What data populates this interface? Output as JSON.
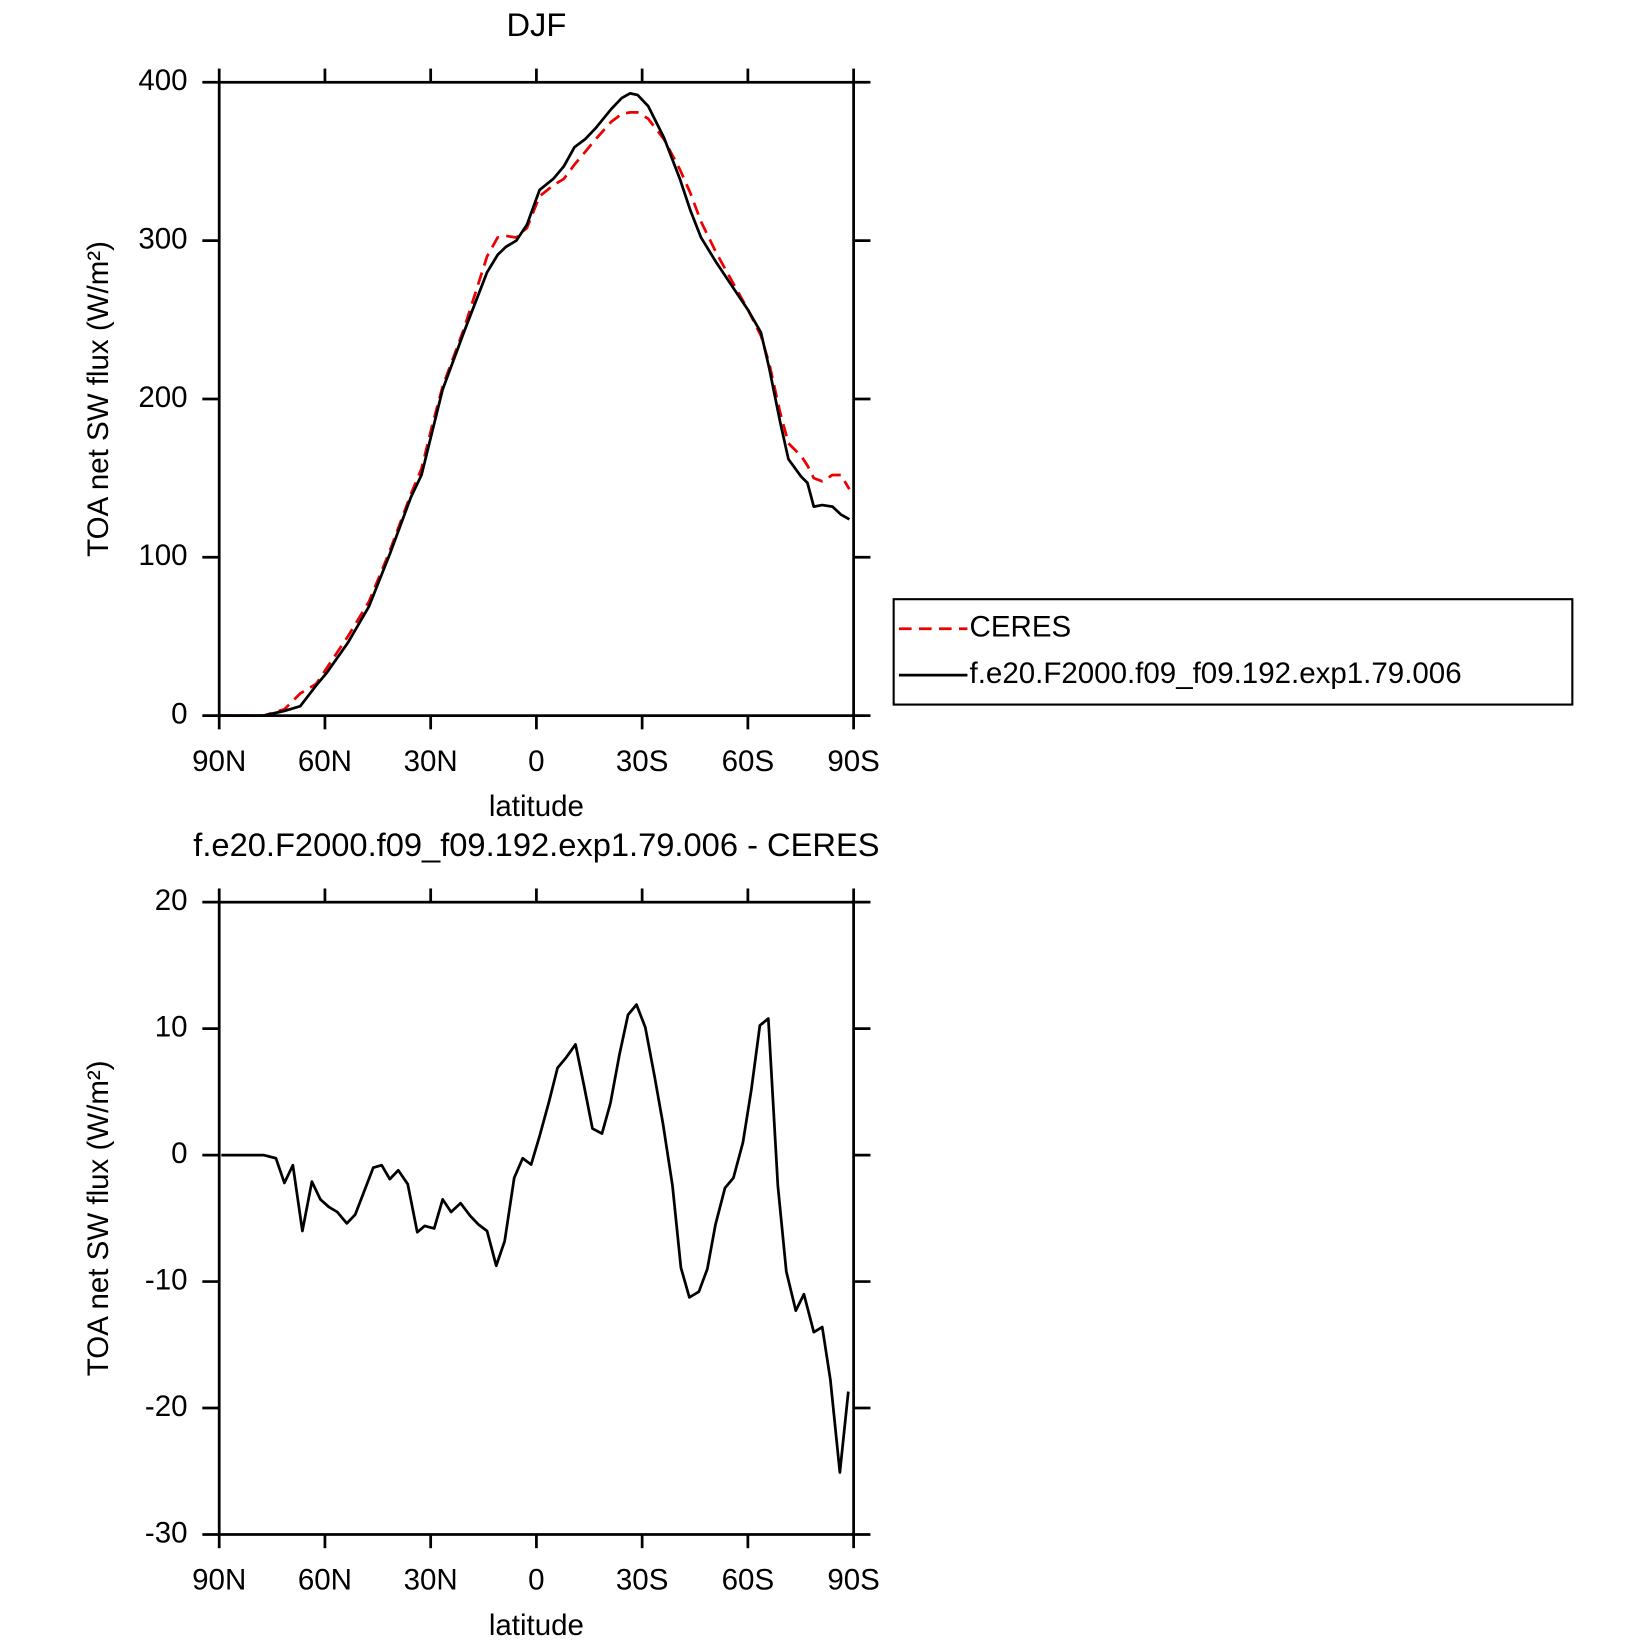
{
  "chart_data": [
    {
      "type": "line",
      "title": "DJF",
      "x_label": "latitude",
      "y_label": "TOA net SW flux (W/m²)",
      "xlim": [
        90,
        -90
      ],
      "ylim": [
        0,
        400
      ],
      "xticks": [
        {
          "value": 90,
          "label": "90N"
        },
        {
          "value": 60,
          "label": "60N"
        },
        {
          "value": 30,
          "label": "30N"
        },
        0,
        {
          "value": -30,
          "label": "30S"
        },
        {
          "value": -60,
          "label": "60S"
        },
        {
          "value": -90,
          "label": "90S"
        }
      ],
      "yticks": [
        0,
        100,
        200,
        300,
        400
      ],
      "legend": "right",
      "x": [
        90,
        77.4,
        71.5,
        67,
        62.5,
        59.5,
        53.5,
        47.5,
        41.6,
        35.6,
        32.6,
        29.6,
        26.6,
        20.6,
        14,
        11,
        8.7,
        5.7,
        2.7,
        -0.9,
        -4.8,
        -7.8,
        -10.8,
        -13.8,
        -16.8,
        -21.2,
        -24.2,
        -26.6,
        -28.7,
        -31.7,
        -36.2,
        -40.7,
        -43.7,
        -46.7,
        -51.1,
        -57.1,
        -60.1,
        -63.7,
        -66.1,
        -69.1,
        -71.5,
        -75.1,
        -76.9,
        -78.7,
        -81.1,
        -84,
        -86.4,
        -88.8
      ],
      "series": [
        {
          "name": "CERES",
          "color": "#ee0000",
          "linestyle": "dashed",
          "values": [
            0,
            0,
            4,
            14,
            20,
            30,
            50,
            72,
            104,
            140,
            156,
            183,
            208,
            244,
            290,
            302,
            303,
            302,
            308,
            328,
            335,
            339,
            348,
            356,
            364,
            375,
            380,
            381,
            381,
            377,
            364,
            345,
            330,
            312,
            292,
            268,
            256,
            240,
            222,
            192,
            172,
            164,
            158,
            150,
            148,
            152,
            152,
            143
          ]
        },
        {
          "name": "f.e20.F2000.f09_f09.192.exp1.79.006",
          "color": "#000000",
          "linestyle": "solid",
          "values": [
            0,
            0,
            3,
            6,
            19,
            27,
            46,
            69,
            102,
            138,
            152,
            179,
            206,
            242,
            280,
            291,
            296,
            300,
            310,
            332,
            339,
            347,
            359,
            364,
            371,
            383,
            390,
            393,
            392,
            385,
            365,
            339,
            319,
            302,
            286,
            266,
            256,
            242,
            219,
            186,
            162,
            151,
            147,
            132,
            133,
            132,
            127,
            124
          ]
        }
      ]
    },
    {
      "type": "line",
      "title": "f.e20.F2000.f09_f09.192.exp1.79.006 - CERES",
      "x_label": "latitude",
      "y_label": "TOA net SW flux (W/m²)",
      "xlim": [
        90,
        -90
      ],
      "ylim": [
        -30,
        20
      ],
      "xticks": [
        {
          "value": 90,
          "label": "90N"
        },
        {
          "value": 60,
          "label": "60N"
        },
        {
          "value": 30,
          "label": "30N"
        },
        0,
        {
          "value": -30,
          "label": "30S"
        },
        {
          "value": -60,
          "label": "60S"
        },
        {
          "value": -90,
          "label": "90S"
        }
      ],
      "yticks": [
        -30,
        -20,
        -10,
        0,
        10,
        20
      ],
      "color": "#000000",
      "x": [
        89.4,
        77.4,
        73.9,
        71.5,
        69.1,
        66.4,
        63.7,
        61.3,
        58.9,
        56.5,
        53.8,
        51.4,
        46.3,
        43.9,
        41.6,
        39.2,
        36.5,
        33.8,
        31.7,
        29,
        26.6,
        24.2,
        21.5,
        18.8,
        16.4,
        14,
        11.4,
        9,
        6.3,
        3.9,
        1.5,
        -0.9,
        -3.6,
        -6,
        -8.4,
        -11.1,
        -13.5,
        -15.9,
        -18.6,
        -21,
        -23.6,
        -26,
        -28.4,
        -30.9,
        -33.5,
        -35.9,
        -38.6,
        -41,
        -43.4,
        -46.1,
        -48.5,
        -50.8,
        -53.5,
        -55.9,
        -58.6,
        -61,
        -63.4,
        -65.8,
        -68.5,
        -70.9,
        -73.6,
        -75.9,
        -78.7,
        -81.1,
        -83.4,
        -86.1,
        -88.5
      ],
      "values": [
        0,
        0,
        -0.25,
        -2.2,
        -0.8,
        -6,
        -2.1,
        -3.5,
        -4.1,
        -4.5,
        -5.4,
        -4.7,
        -1,
        -0.8,
        -1.9,
        -1.2,
        -2.3,
        -6.1,
        -5.6,
        -5.8,
        -3.5,
        -4.5,
        -3.8,
        -4.8,
        -5.5,
        -6,
        -8.75,
        -6.8,
        -1.8,
        -0.25,
        -0.75,
        1.5,
        4.25,
        6.9,
        7.7,
        8.75,
        5.5,
        2.1,
        1.7,
        4.1,
        8,
        11.1,
        11.9,
        10.1,
        6.25,
        2.5,
        -2.4,
        -8.9,
        -11.25,
        -10.8,
        -9,
        -5.5,
        -2.6,
        -1.8,
        1,
        5.2,
        10.25,
        10.8,
        -2.4,
        -9.2,
        -12.3,
        -11,
        -14,
        -13.6,
        -17.75,
        -25.1,
        -18.7
      ]
    }
  ]
}
